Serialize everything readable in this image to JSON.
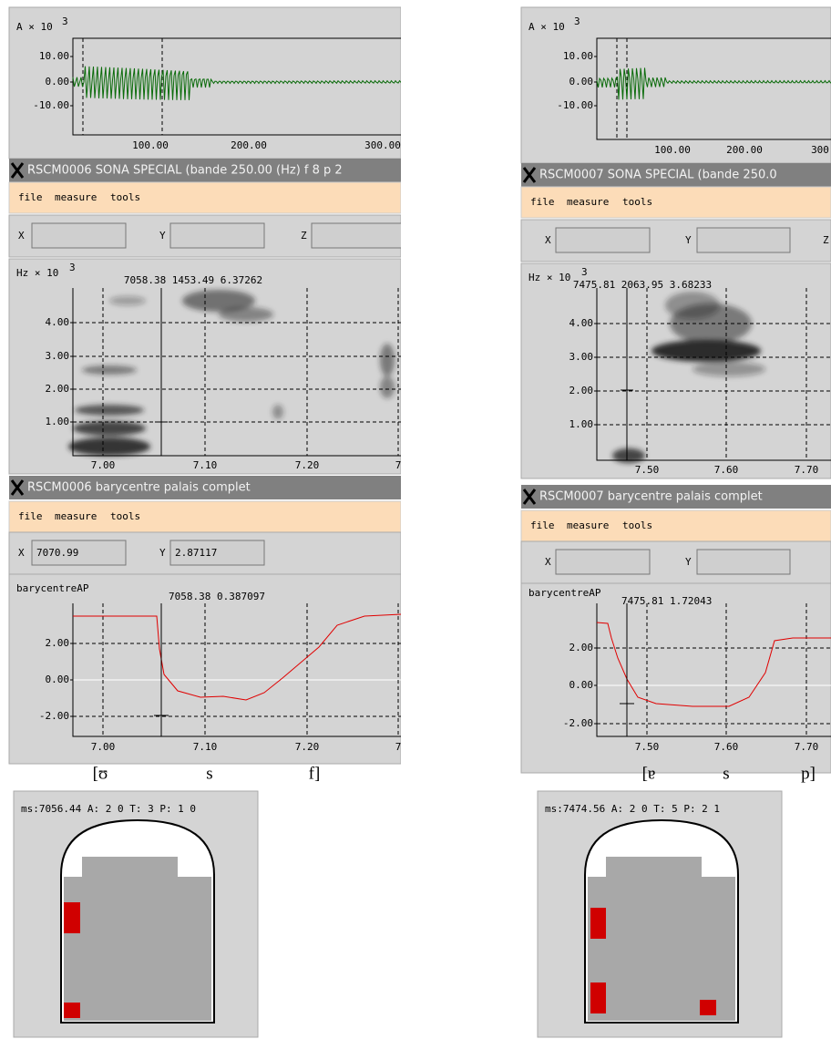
{
  "left": {
    "waveform": {
      "y_label": "A × 10",
      "y_label_exp": "3",
      "yticks": [
        "10.00",
        "0.00",
        "-10.00"
      ],
      "xticks": [
        "100.00",
        "200.00",
        "300.00"
      ]
    },
    "spectrogram_window": {
      "title": "RSCM0006 SONA SPECIAL (bande 250.00 (Hz) f 8 p 2",
      "menu": [
        "file",
        "measure",
        "tools"
      ],
      "fields": [
        "X",
        "Y",
        "Z"
      ],
      "y_label": "Hz × 10",
      "y_label_exp": "3",
      "readout": "7058.38 1453.49 6.37262",
      "yticks": [
        "4.00",
        "3.00",
        "2.00",
        "1.00"
      ],
      "xticks": [
        "7.00",
        "7.10",
        "7.20",
        "7"
      ]
    },
    "barycentre_window": {
      "title": "RSCM0006  barycentre palais complet",
      "menu": [
        "file",
        "measure",
        "tools"
      ],
      "fields": [
        "X",
        "Y"
      ],
      "field_values": [
        "7070.99",
        "2.87117"
      ],
      "y_label": "barycentreAP",
      "readout": "7058.38   0.387097",
      "yticks": [
        "2.00",
        "0.00",
        "-2.00"
      ],
      "xticks": [
        "7.00",
        "7.10",
        "7.20",
        "7"
      ]
    },
    "transcription": [
      "[ʊ",
      "s",
      "f]"
    ],
    "palate": {
      "status": "ms:7056.44 A:  2  0 T: 3 P:  1  0"
    }
  },
  "right": {
    "waveform": {
      "y_label": "A × 10",
      "y_label_exp": "3",
      "yticks": [
        "10.00",
        "0.00",
        "-10.00"
      ],
      "xticks": [
        "100.00",
        "200.00",
        "300"
      ]
    },
    "spectrogram_window": {
      "title": "RSCM0007 SONA SPECIAL (bande 250.0",
      "menu": [
        "file",
        "measure",
        "tools"
      ],
      "fields": [
        "X",
        "Y",
        "Z"
      ],
      "y_label": "Hz × 10",
      "y_label_exp": "3",
      "readout": "7475.81 2063.95 3.68233",
      "yticks": [
        "4.00",
        "3.00",
        "2.00",
        "1.00"
      ],
      "xticks": [
        "7.50",
        "7.60",
        "7.70"
      ]
    },
    "barycentre_window": {
      "title": "RSCM0007  barycentre palais complet",
      "menu": [
        "file",
        "measure",
        "tools"
      ],
      "fields": [
        "X",
        "Y"
      ],
      "y_label": "barycentreAP",
      "readout": "7475.81   1.72043",
      "yticks": [
        "2.00",
        "0.00",
        "-2.00"
      ],
      "xticks": [
        "7.50",
        "7.60",
        "7.70"
      ]
    },
    "transcription": [
      "[ɐ",
      "s",
      "p]"
    ],
    "palate": {
      "status": "ms:7474.56 A:  2  0 T: 5 P:  2  1"
    }
  }
}
